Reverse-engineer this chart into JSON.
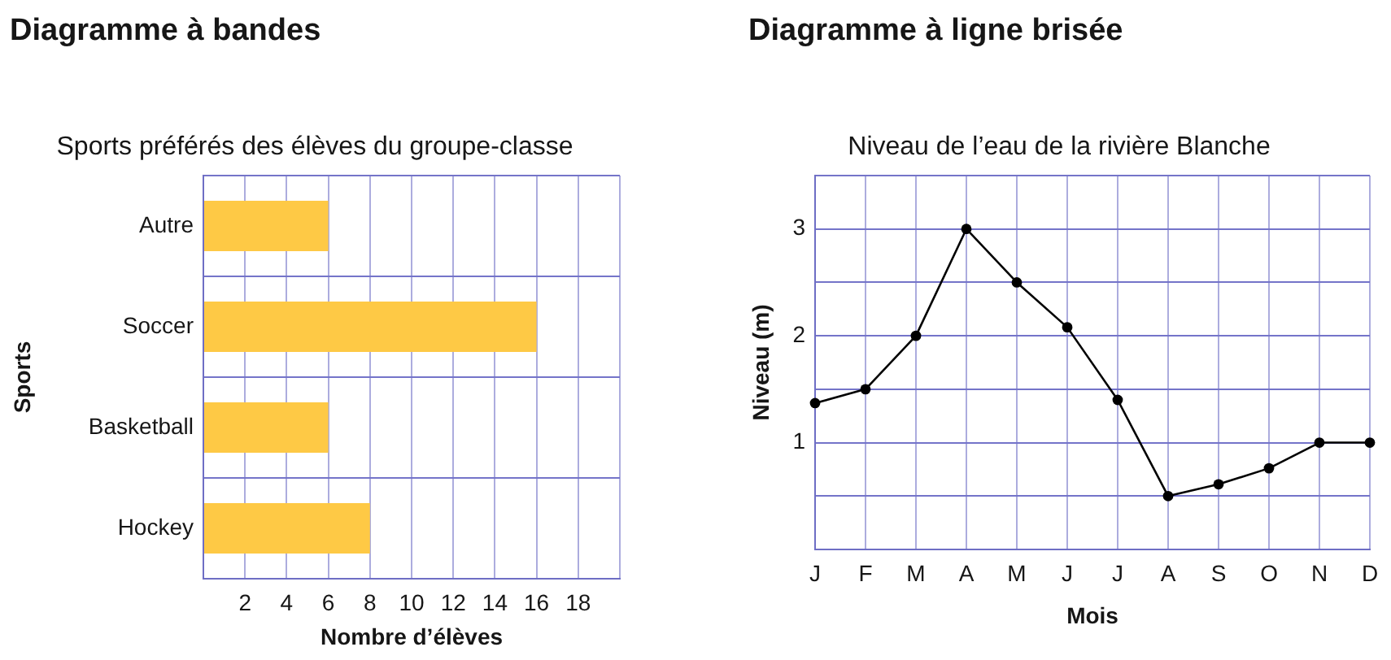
{
  "chart_data": [
    {
      "type": "bar",
      "orientation": "horizontal",
      "title": "Diagramme à bandes",
      "subtitle": "Sports préférés des élèves du groupe-classe",
      "xlabel": "Nombre d’élèves",
      "ylabel": "Sports",
      "categories": [
        "Autre",
        "Soccer",
        "Basketball",
        "Hockey"
      ],
      "values": [
        6,
        16,
        6,
        8
      ],
      "color": "#fec945",
      "xlim": [
        0,
        20
      ],
      "xticks": [
        {
          "value": 0,
          "label": null
        },
        2,
        4,
        6,
        8,
        10,
        12,
        14,
        16,
        18,
        {
          "value": 20,
          "label": null
        }
      ],
      "grid": true
    },
    {
      "type": "line",
      "title": "Diagramme à ligne brisée",
      "subtitle": "Niveau de l’eau de la rivière Blanche",
      "xlabel": "Mois",
      "ylabel": "Niveau (m)",
      "categories": [
        "J",
        "F",
        "M",
        "A",
        "M",
        "J",
        "J",
        "A",
        "S",
        "O",
        "N",
        "D"
      ],
      "values": [
        1.37,
        1.5,
        2,
        3,
        2.5,
        2.08,
        1.4,
        0.5,
        0.61,
        0.76,
        1,
        1
      ],
      "color": "#000000",
      "marker": "circle",
      "line_style": "solid",
      "ylim": [
        0,
        3.5
      ],
      "yticks": [
        {
          "value": 0,
          "label": null
        },
        {
          "value": 0.5,
          "label": null
        },
        1,
        {
          "value": 1.5,
          "label": null
        },
        2,
        {
          "value": 2.5,
          "label": null
        },
        3,
        {
          "value": 3.5,
          "label": null
        }
      ],
      "grid": true
    }
  ]
}
